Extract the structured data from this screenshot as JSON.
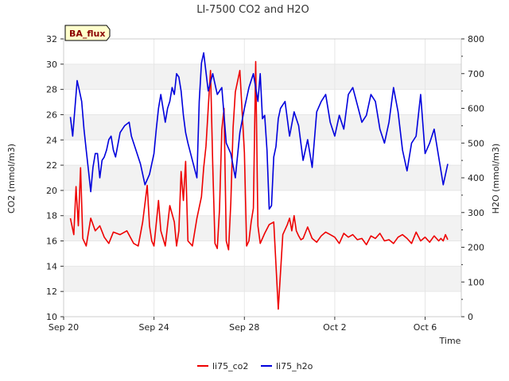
{
  "chart_data": {
    "type": "line",
    "title": "LI-7500 CO2 and H2O",
    "site_badge": "BA_flux",
    "xlabel": "Time",
    "ylabel_left": "CO2 (mmol/m3)",
    "ylabel_right": "H2O (mmol/m3)",
    "x_ticks": [
      {
        "label": "Sep 20",
        "day": 0
      },
      {
        "label": "Sep 24",
        "day": 4
      },
      {
        "label": "Sep 28",
        "day": 8
      },
      {
        "label": "Oct 2",
        "day": 12
      },
      {
        "label": "Oct 6",
        "day": 16
      }
    ],
    "xlim_days": [
      0,
      17.6
    ],
    "ylim_left": [
      10,
      32
    ],
    "yticks_left": [
      10,
      12,
      14,
      16,
      18,
      20,
      22,
      24,
      26,
      28,
      30,
      32
    ],
    "ylim_right": [
      0,
      800
    ],
    "yticks_right": [
      0,
      100,
      200,
      300,
      400,
      500,
      600,
      700,
      800
    ],
    "grid_bands": true,
    "legend_position": "bottom-center",
    "series": [
      {
        "name": "li75_co2",
        "axis": "left",
        "color": "#ee0000",
        "x_days": [
          0.3,
          0.45,
          0.55,
          0.65,
          0.75,
          0.85,
          1.0,
          1.2,
          1.4,
          1.6,
          1.8,
          2.0,
          2.2,
          2.5,
          2.8,
          3.1,
          3.3,
          3.5,
          3.7,
          3.8,
          3.9,
          4.0,
          4.1,
          4.2,
          4.3,
          4.5,
          4.7,
          4.9,
          5.0,
          5.1,
          5.2,
          5.3,
          5.4,
          5.5,
          5.7,
          5.9,
          6.1,
          6.2,
          6.3,
          6.4,
          6.5,
          6.6,
          6.7,
          6.8,
          6.9,
          7.0,
          7.1,
          7.2,
          7.3,
          7.4,
          7.5,
          7.6,
          7.8,
          8.0,
          8.1,
          8.2,
          8.3,
          8.4,
          8.5,
          8.6,
          8.7,
          8.9,
          9.1,
          9.3,
          9.5,
          9.7,
          9.9,
          10.0,
          10.1,
          10.2,
          10.3,
          10.4,
          10.5,
          10.6,
          10.8,
          11.0,
          11.2,
          11.4,
          11.6,
          11.8,
          12.0,
          12.2,
          12.4,
          12.6,
          12.8,
          13.0,
          13.2,
          13.4,
          13.6,
          13.8,
          14.0,
          14.2,
          14.4,
          14.6,
          14.8,
          15.0,
          15.2,
          15.4,
          15.6,
          15.8,
          16.0,
          16.2,
          16.4,
          16.6,
          16.7,
          16.8,
          16.9,
          17.0
        ],
        "values": [
          17.8,
          16.5,
          20.3,
          17.2,
          21.8,
          16.2,
          15.6,
          17.8,
          16.8,
          17.2,
          16.3,
          15.8,
          16.7,
          16.5,
          16.8,
          15.8,
          15.6,
          17.5,
          20.4,
          17.2,
          16.0,
          15.6,
          17.4,
          19.2,
          16.8,
          15.6,
          18.8,
          17.5,
          15.6,
          16.8,
          21.5,
          19.2,
          22.3,
          16.0,
          15.6,
          17.8,
          19.5,
          21.8,
          23.5,
          26.5,
          29.5,
          22.0,
          15.8,
          15.4,
          18.5,
          24.8,
          26.5,
          16.0,
          15.3,
          19.0,
          25.0,
          27.8,
          29.5,
          23.0,
          15.6,
          16.0,
          17.5,
          18.6,
          30.2,
          17.2,
          15.8,
          16.6,
          17.3,
          17.5,
          10.6,
          16.5,
          17.3,
          17.8,
          16.8,
          18.0,
          16.8,
          16.4,
          16.1,
          16.2,
          17.1,
          16.2,
          15.9,
          16.4,
          16.7,
          16.5,
          16.3,
          15.8,
          16.6,
          16.3,
          16.5,
          16.1,
          16.2,
          15.7,
          16.4,
          16.2,
          16.6,
          16.0,
          16.1,
          15.8,
          16.3,
          16.5,
          16.2,
          15.8,
          16.7,
          16.0,
          16.3,
          15.9,
          16.4,
          16.0,
          16.2,
          16.0,
          16.5,
          16.1
        ]
      },
      {
        "name": "li75_h2o",
        "axis": "right",
        "color": "#0000dd",
        "x_days": [
          0.3,
          0.4,
          0.5,
          0.6,
          0.7,
          0.8,
          0.9,
          1.0,
          1.1,
          1.2,
          1.3,
          1.4,
          1.5,
          1.6,
          1.7,
          1.8,
          1.9,
          2.0,
          2.1,
          2.2,
          2.3,
          2.5,
          2.7,
          2.9,
          3.0,
          3.2,
          3.4,
          3.6,
          3.8,
          4.0,
          4.1,
          4.2,
          4.3,
          4.4,
          4.5,
          4.6,
          4.7,
          4.8,
          4.9,
          5.0,
          5.1,
          5.2,
          5.3,
          5.4,
          5.5,
          5.7,
          5.9,
          6.0,
          6.1,
          6.2,
          6.4,
          6.6,
          6.8,
          7.0,
          7.2,
          7.4,
          7.6,
          7.8,
          8.0,
          8.2,
          8.4,
          8.6,
          8.7,
          8.8,
          8.9,
          9.0,
          9.1,
          9.2,
          9.3,
          9.4,
          9.5,
          9.6,
          9.8,
          10.0,
          10.2,
          10.4,
          10.6,
          10.8,
          11.0,
          11.2,
          11.4,
          11.6,
          11.8,
          12.0,
          12.2,
          12.4,
          12.6,
          12.8,
          13.0,
          13.2,
          13.4,
          13.6,
          13.8,
          14.0,
          14.2,
          14.4,
          14.6,
          14.8,
          15.0,
          15.2,
          15.4,
          15.6,
          15.8,
          16.0,
          16.2,
          16.4,
          16.6,
          16.8,
          17.0
        ],
        "values": [
          575,
          520,
          600,
          680,
          650,
          620,
          540,
          480,
          420,
          360,
          430,
          470,
          470,
          400,
          450,
          460,
          480,
          510,
          520,
          480,
          460,
          530,
          550,
          560,
          520,
          480,
          440,
          380,
          410,
          470,
          540,
          600,
          640,
          600,
          560,
          600,
          620,
          660,
          640,
          700,
          690,
          650,
          580,
          530,
          500,
          450,
          400,
          620,
          730,
          760,
          650,
          700,
          640,
          660,
          500,
          470,
          400,
          530,
          600,
          660,
          700,
          620,
          700,
          570,
          580,
          480,
          310,
          320,
          460,
          490,
          570,
          600,
          620,
          520,
          590,
          550,
          450,
          510,
          430,
          590,
          620,
          640,
          560,
          520,
          580,
          540,
          640,
          660,
          610,
          560,
          580,
          640,
          620,
          540,
          500,
          560,
          660,
          590,
          480,
          420,
          500,
          520,
          640,
          470,
          500,
          540,
          460,
          380,
          440
        ]
      }
    ]
  }
}
